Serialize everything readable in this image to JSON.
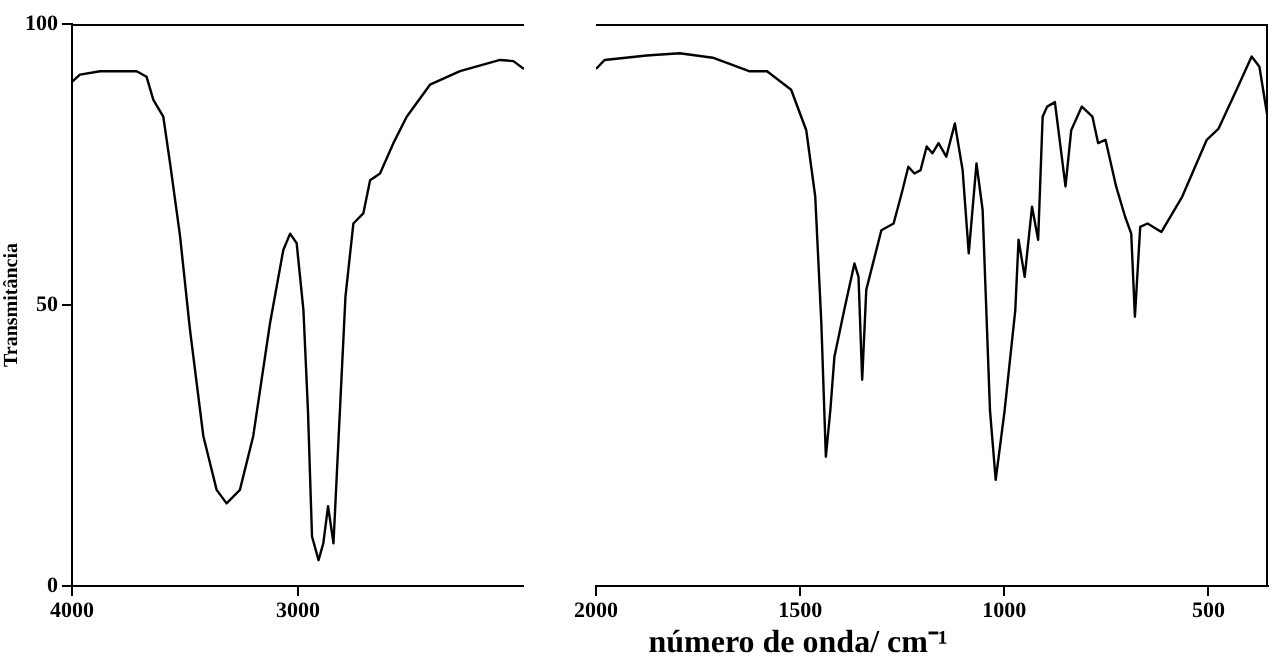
{
  "chart_data": [
    {
      "type": "line",
      "ylabel": "Transmitância",
      "xlim": [
        4000,
        2000
      ],
      "xticks": [
        4000,
        3000
      ],
      "ylim": [
        0,
        100
      ],
      "yticks": [
        0,
        50,
        100
      ],
      "grid": false,
      "legend": false,
      "marker": "none",
      "line_style": "solid",
      "series": [
        {
          "color": "#000000",
          "x": [
            4000,
            3965,
            3876,
            3714,
            3670,
            3640,
            3596,
            3566,
            3522,
            3478,
            3419,
            3360,
            3316,
            3257,
            3198,
            3124,
            3065,
            3035,
            3006,
            2976,
            2956,
            2938,
            2909,
            2888,
            2867,
            2843,
            2820,
            2790,
            2755,
            2711,
            2681,
            2637,
            2578,
            2519,
            2416,
            2283,
            2106,
            2047,
            2000
          ],
          "values": [
            89.7,
            91,
            91.6,
            91.6,
            90.6,
            86.5,
            83.5,
            75.2,
            62.3,
            45.6,
            26.7,
            17.1,
            14.7,
            17.1,
            26.7,
            46.7,
            59.8,
            62.7,
            61,
            49.1,
            31.3,
            8.8,
            4.6,
            7.6,
            14.2,
            7.6,
            26.7,
            51.5,
            64.5,
            66.3,
            72.2,
            73.4,
            78.8,
            83.5,
            89.2,
            91.6,
            93.6,
            93.4,
            92
          ]
        }
      ]
    },
    {
      "type": "line",
      "xlabel": "número de onda/ cm⁻¹",
      "xlim": [
        2000,
        354
      ],
      "xticks": [
        2000,
        1500,
        1000,
        500
      ],
      "ylim": [
        0,
        100
      ],
      "tick_labels": "x",
      "grid": false,
      "legend": false,
      "marker": "none",
      "line_style": "solid",
      "series": [
        {
          "color": "#000000",
          "x": [
            2000,
            1979,
            1876,
            1795,
            1714,
            1625,
            1581,
            1522,
            1485,
            1463,
            1448,
            1437,
            1426,
            1416,
            1392,
            1367,
            1357,
            1348,
            1338,
            1323,
            1301,
            1271,
            1249,
            1235,
            1220,
            1205,
            1190,
            1176,
            1161,
            1142,
            1121,
            1102,
            1087,
            1068,
            1053,
            1035,
            1021,
            999,
            973,
            965,
            950,
            932,
            917,
            906,
            895,
            876,
            850,
            836,
            810,
            784,
            770,
            752,
            726,
            704,
            689,
            680,
            667,
            649,
            615,
            564,
            504,
            475,
            431,
            394,
            375,
            354
          ],
          "values": [
            92,
            93.6,
            94.4,
            94.8,
            94,
            91.6,
            91.6,
            88.3,
            81.1,
            69.3,
            46.7,
            23,
            31.3,
            40.8,
            49.1,
            57.4,
            55,
            36.7,
            52.7,
            57,
            63.3,
            64.5,
            70.5,
            74.6,
            73.4,
            74,
            78.2,
            77,
            78.8,
            76.4,
            82.3,
            74,
            59.2,
            75.2,
            66.9,
            31.3,
            18.9,
            31.3,
            49.1,
            61.6,
            55,
            67.5,
            61.6,
            83.5,
            85.3,
            86.1,
            71.1,
            81.1,
            85.3,
            83.5,
            78.8,
            79.4,
            71.1,
            65.7,
            62.7,
            47.9,
            63.9,
            64.5,
            63,
            69.3,
            79.4,
            81.4,
            88.3,
            94.2,
            92.4,
            82.9
          ]
        }
      ]
    }
  ]
}
